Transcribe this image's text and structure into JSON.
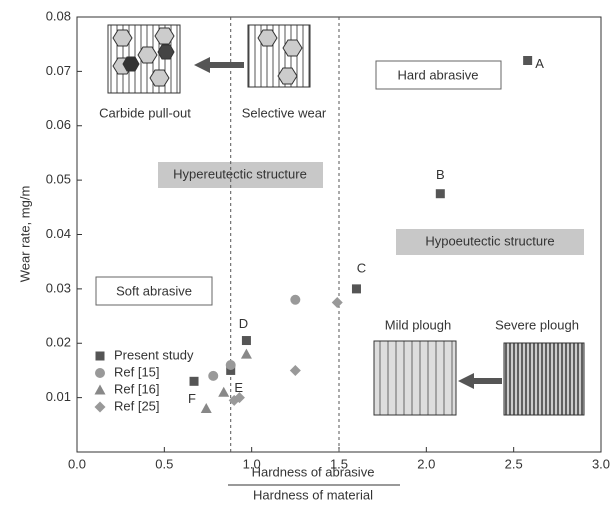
{
  "chart_data": {
    "type": "scatter",
    "xlabel": [
      "Hardness of abrasive",
      "Hardness of material"
    ],
    "ylabel": "Wear rate, mg/m",
    "xlim": [
      0,
      3
    ],
    "ylim": [
      0,
      0.08
    ],
    "xticks": [
      {
        "value": 0,
        "label": "0.0"
      },
      0.5,
      {
        "value": 1,
        "label": "1.0"
      },
      1.5,
      {
        "value": 2,
        "label": "2.0"
      },
      2.5,
      {
        "value": 3,
        "label": "3.0"
      }
    ],
    "yticks": [
      0.01,
      0.02,
      0.03,
      0.04,
      0.05,
      0.06,
      0.07,
      0.08
    ],
    "vlines": [
      0.88,
      1.5
    ],
    "legend": "lower left",
    "series": [
      {
        "name": "Present study",
        "marker": "square",
        "color": "#555555",
        "x": [
          2.58,
          2.08,
          1.6,
          0.97,
          0.88,
          0.67
        ],
        "values": [
          0.072,
          0.0475,
          0.03,
          0.0205,
          0.015,
          0.013
        ],
        "point_labels": [
          "A",
          "B",
          "C",
          "D",
          "E",
          "F"
        ]
      },
      {
        "name": "Ref [15]",
        "marker": "circle",
        "color": "#999999",
        "x": [
          0.78,
          0.88,
          1.25
        ],
        "values": [
          0.014,
          0.016,
          0.028
        ]
      },
      {
        "name": "Ref [16]",
        "marker": "triangle",
        "color": "#888888",
        "x": [
          0.74,
          0.84,
          0.97
        ],
        "values": [
          0.008,
          0.011,
          0.018
        ]
      },
      {
        "name": "Ref [25]",
        "marker": "diamond",
        "color": "#999999",
        "x": [
          0.9,
          0.93,
          1.25,
          1.49
        ],
        "values": [
          0.0095,
          0.01,
          0.015,
          0.0275
        ]
      }
    ],
    "annotations": {
      "hard": "Hard abrasive",
      "soft": "Soft abrasive",
      "hyper": "Hypereutectic structure",
      "hypo": "Hypoeutectic structure",
      "pullout": "Carbide pull-out",
      "selective": "Selective wear",
      "mild": "Mild plough",
      "severe": "Severe plough"
    }
  }
}
